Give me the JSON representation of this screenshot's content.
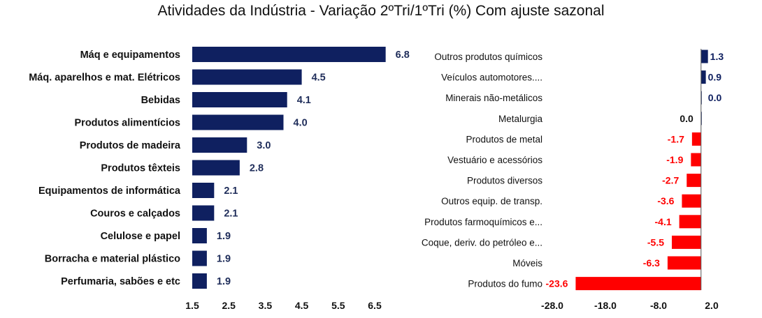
{
  "chart_data": [
    {
      "type": "bar",
      "orientation": "horizontal",
      "title": "Atividades da Indústria - Variação 2ºTri/1ºTri (%) Com ajuste sazonal",
      "categories": [
        "Máq e equipamentos",
        "Máq. aparelhos e mat. Elétricos",
        "Bebidas",
        "Produtos alimentícios",
        "Produtos de madeira",
        "Produtos têxteis",
        "Equipamentos de informática",
        "Couros e calçados",
        "Celulose e papel",
        "Borracha e material plástico",
        "Perfumaria, sabões e etc"
      ],
      "values": [
        6.8,
        4.5,
        4.1,
        4.0,
        3.0,
        2.8,
        2.1,
        2.1,
        1.9,
        1.9,
        1.9
      ],
      "value_labels": [
        "6.8",
        "4.5",
        "4.1",
        "4.0",
        "3.0",
        "2.8",
        "2.1",
        "2.1",
        "1.9",
        "1.9",
        "1.9"
      ],
      "xlim": [
        1.5,
        6.5
      ],
      "xticks": [
        "1.5",
        "2.5",
        "3.5",
        "4.5",
        "5.5",
        "6.5"
      ],
      "color": "#0f2060",
      "grid": false
    },
    {
      "type": "bar",
      "orientation": "horizontal",
      "categories": [
        "Outros produtos químicos",
        "Veículos automotores....",
        "Minerais não-metálicos",
        "Metalurgia",
        "Produtos de metal",
        "Vestuário e acessórios",
        "Produtos diversos",
        "Outros equip. de transp.",
        "Produtos farmoquímicos e...",
        "Coque, deriv. do petróleo e...",
        "Móveis",
        "Produtos do fumo"
      ],
      "values": [
        1.3,
        0.9,
        0.0,
        0.0,
        -1.7,
        -1.9,
        -2.7,
        -3.6,
        -4.1,
        -5.5,
        -6.3,
        -23.6
      ],
      "value_labels": [
        "1.3",
        "0.9",
        "0.0",
        "0.0",
        "-1.7",
        "-1.9",
        "-2.7",
        "-3.6",
        "-4.1",
        "-5.5",
        "-6.3",
        "-23.6"
      ],
      "xlim": [
        -28.0,
        2.0
      ],
      "xticks": [
        "-28.0",
        "-18.0",
        "-8.0",
        "2.0"
      ],
      "positive_color": "#0f2060",
      "negative_color": "#ff0000",
      "grid": false
    }
  ]
}
